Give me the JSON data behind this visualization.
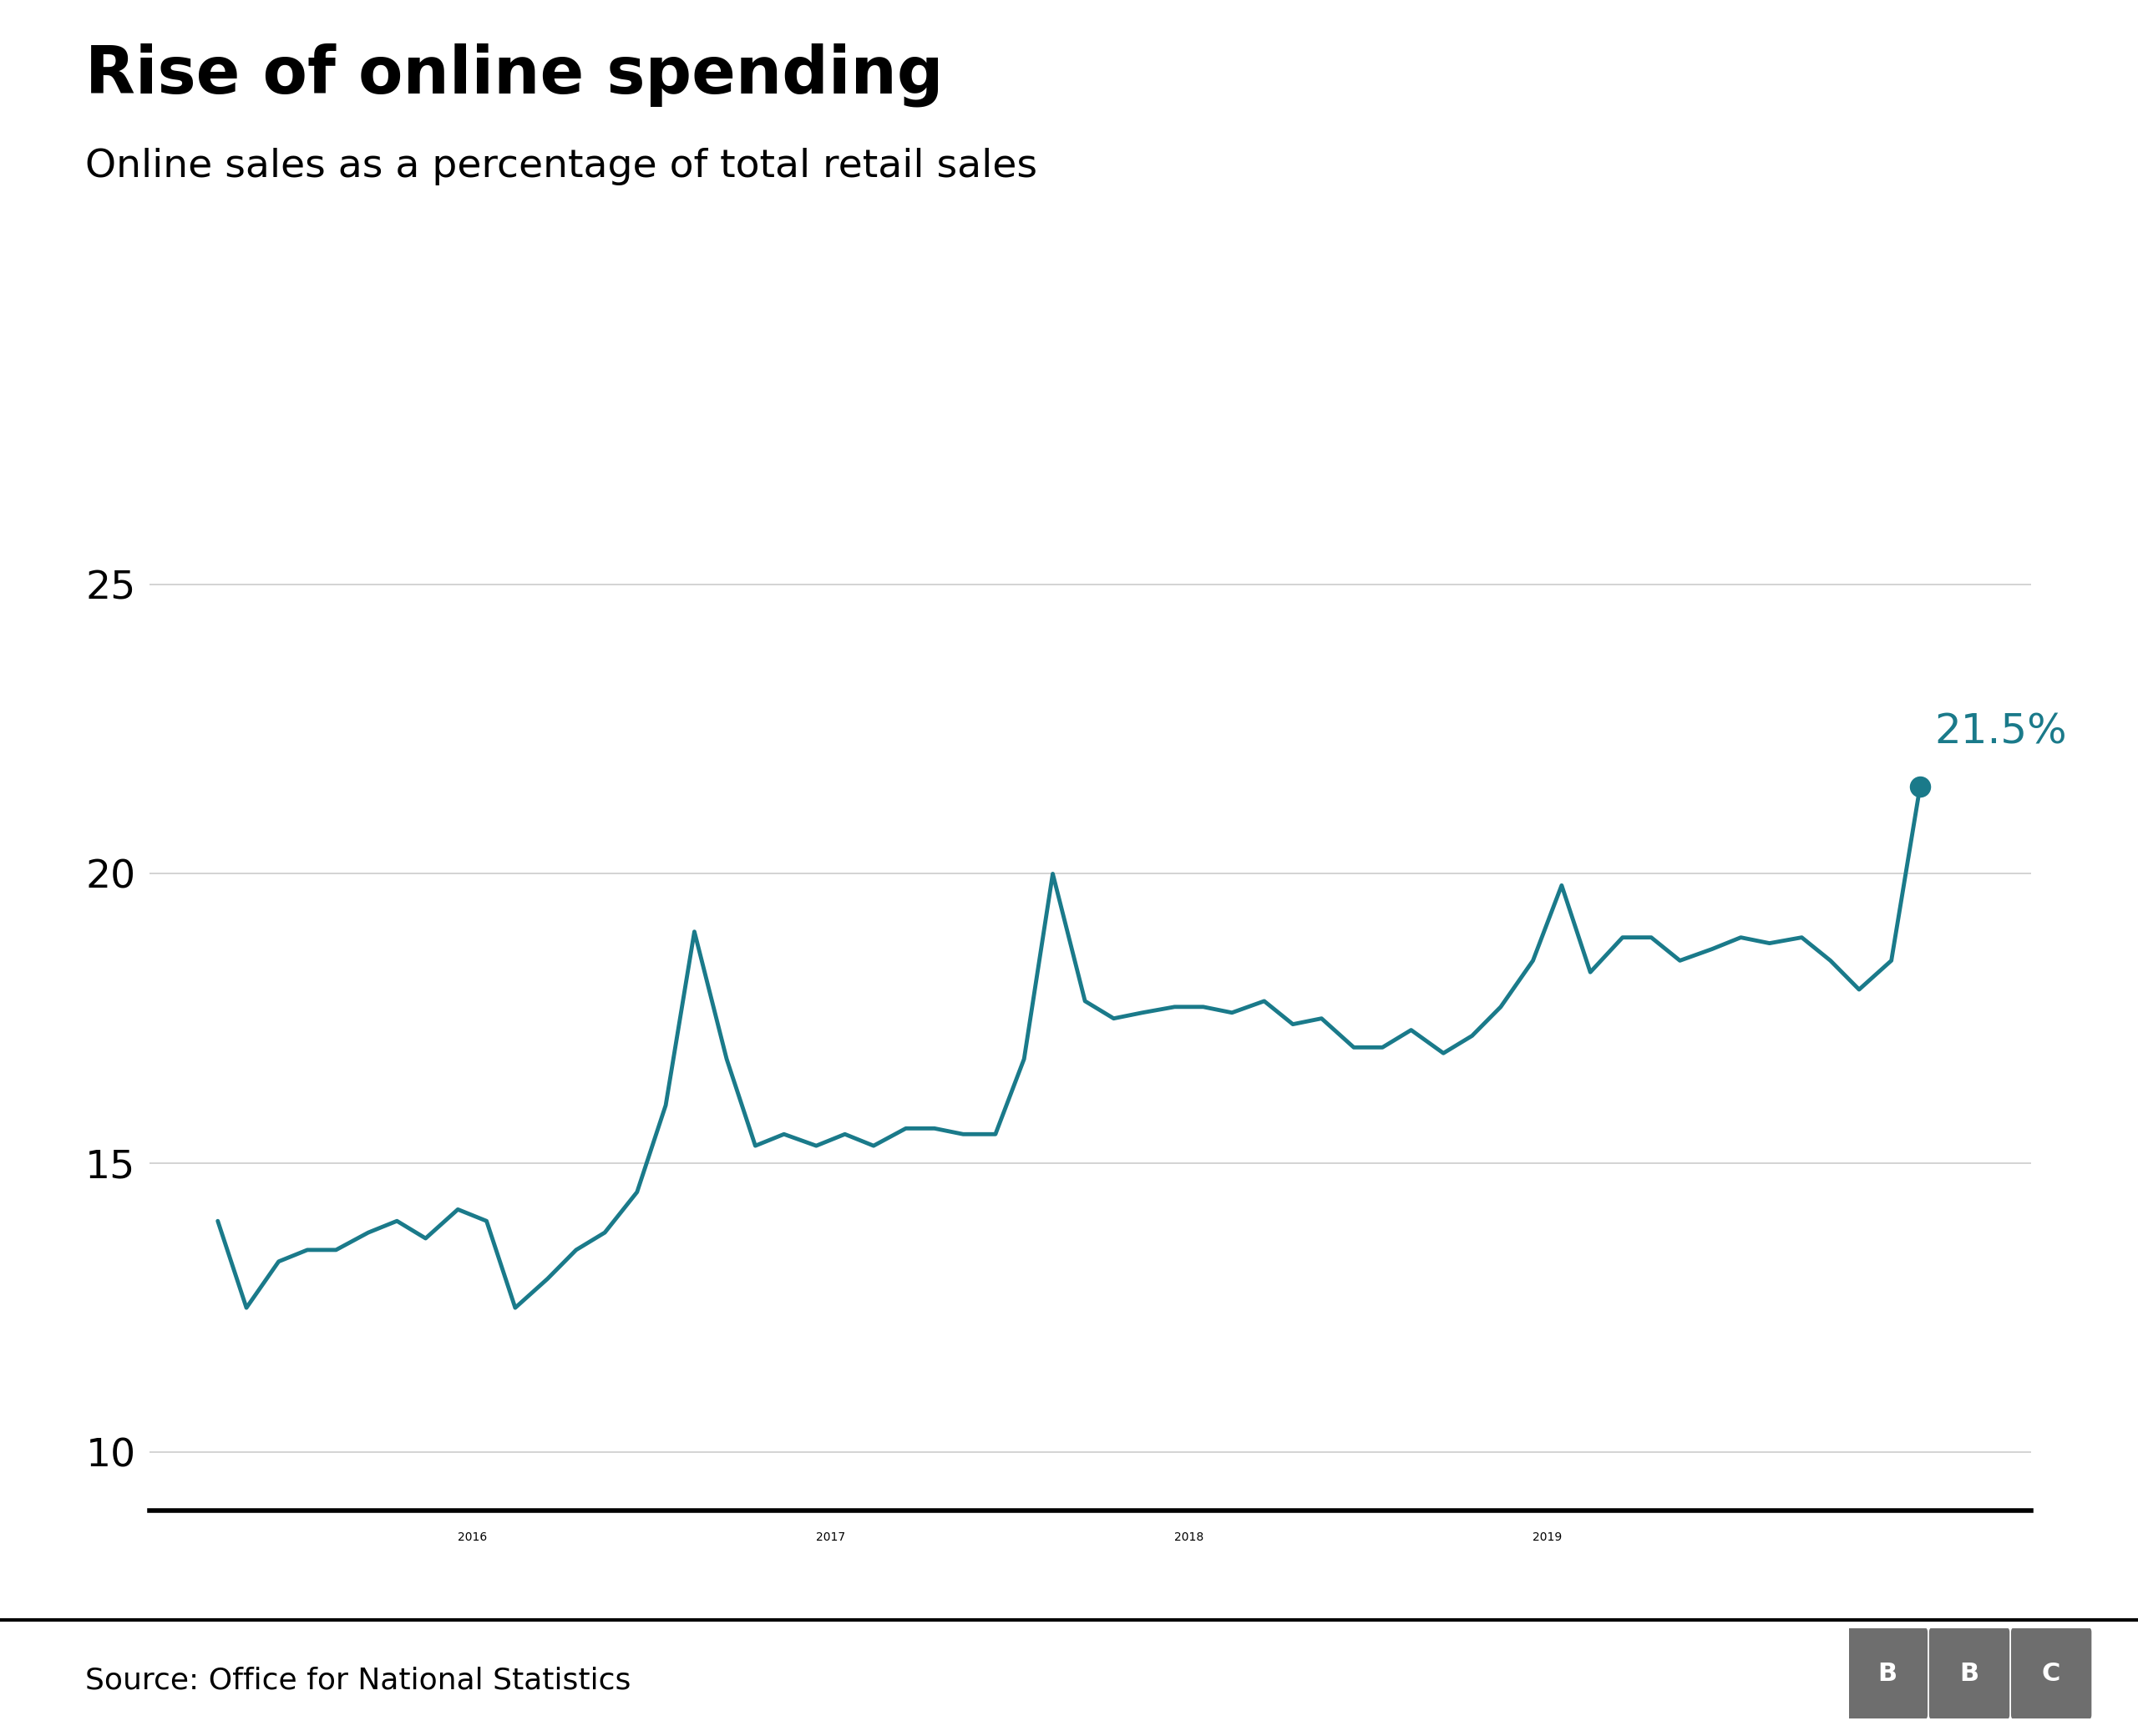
{
  "title": "Rise of online spending",
  "subtitle": "Online sales as a percentage of total retail sales",
  "source": "Source: Office for National Statistics",
  "line_color": "#1a7a8a",
  "annotation_color": "#1a7a8a",
  "last_label": "21.5%",
  "yticks": [
    10,
    15,
    20,
    25
  ],
  "ylim": [
    9.0,
    27.0
  ],
  "background_color": "#ffffff",
  "grid_color": "#cccccc",
  "line_width": 3.5,
  "title_fontsize": 56,
  "subtitle_fontsize": 34,
  "axis_fontsize": 34,
  "source_fontsize": 26,
  "annotation_fontsize": 36,
  "x_values": [
    2015.29,
    2015.37,
    2015.46,
    2015.54,
    2015.62,
    2015.71,
    2015.79,
    2015.87,
    2015.96,
    2016.04,
    2016.12,
    2016.21,
    2016.29,
    2016.37,
    2016.46,
    2016.54,
    2016.62,
    2016.71,
    2016.79,
    2016.87,
    2016.96,
    2017.04,
    2017.12,
    2017.21,
    2017.29,
    2017.37,
    2017.46,
    2017.54,
    2017.62,
    2017.71,
    2017.79,
    2017.87,
    2017.96,
    2018.04,
    2018.12,
    2018.21,
    2018.29,
    2018.37,
    2018.46,
    2018.54,
    2018.62,
    2018.71,
    2018.79,
    2018.87,
    2018.96,
    2019.04,
    2019.12,
    2019.21,
    2019.29,
    2019.37,
    2019.46,
    2019.54,
    2019.62,
    2019.71,
    2019.79,
    2019.87,
    2019.96,
    2020.04
  ],
  "y_values": [
    14.0,
    12.5,
    13.3,
    13.5,
    13.5,
    13.8,
    14.0,
    13.7,
    14.2,
    14.0,
    12.5,
    13.0,
    13.5,
    13.8,
    14.5,
    16.0,
    19.0,
    16.8,
    15.3,
    15.5,
    15.3,
    15.5,
    15.3,
    15.6,
    15.6,
    15.5,
    15.5,
    16.8,
    20.0,
    17.8,
    17.5,
    17.6,
    17.7,
    17.7,
    17.6,
    17.8,
    17.4,
    17.5,
    17.0,
    17.0,
    17.3,
    16.9,
    17.2,
    17.7,
    18.5,
    19.8,
    18.3,
    18.9,
    18.9,
    18.5,
    18.7,
    18.9,
    18.8,
    18.9,
    18.5,
    18.0,
    18.5,
    21.5
  ],
  "xtick_positions": [
    2016.0,
    2017.0,
    2018.0,
    2019.0
  ],
  "xtick_labels": [
    "2016",
    "2017",
    "2018",
    "2019"
  ],
  "bbc_box_color": "#6e6e6e",
  "bbc_text_color": "#ffffff",
  "separator_color": "#000000",
  "bottom_spine_color": "#000000"
}
